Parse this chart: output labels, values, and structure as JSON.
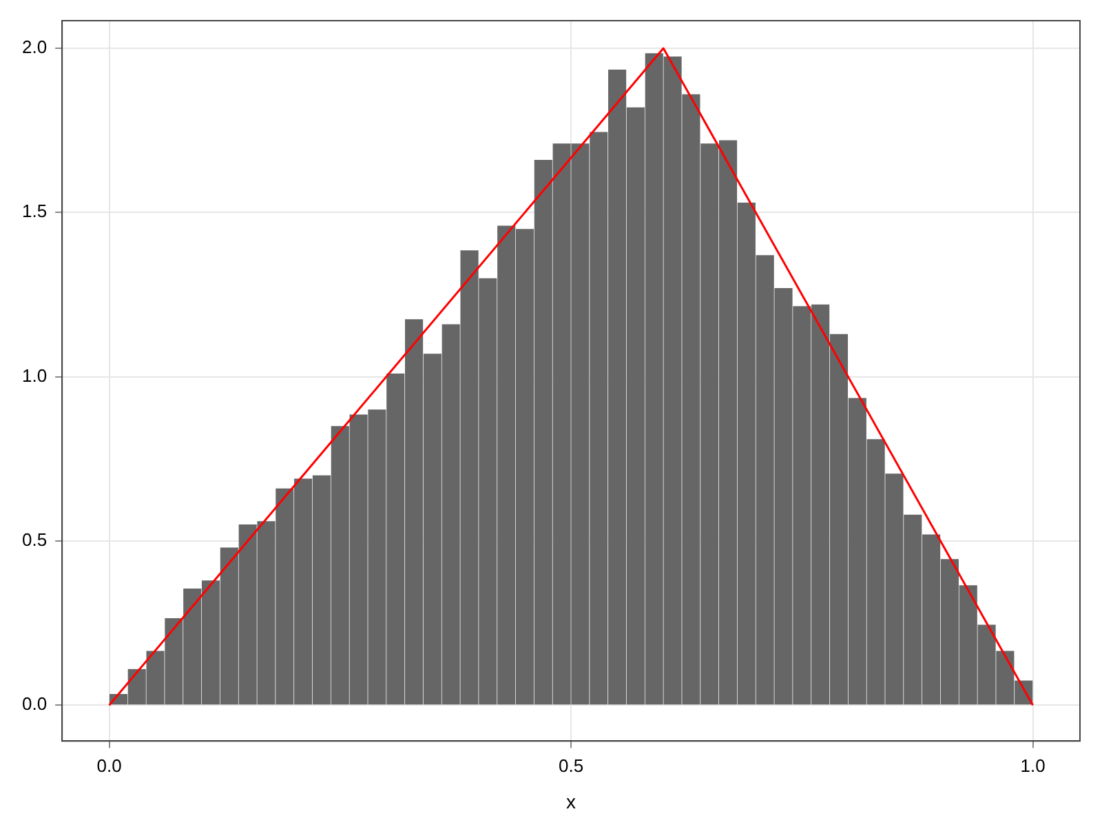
{
  "chart_data": {
    "type": "histogram",
    "xlabel": "x",
    "xlim": [
      -0.051,
      1.051
    ],
    "ylim": [
      -0.109,
      2.084
    ],
    "xticks": [
      {
        "value": 0,
        "label": "0.0"
      },
      {
        "value": 0.5,
        "label": "0.5"
      },
      {
        "value": 1,
        "label": "1.0"
      }
    ],
    "yticks": [
      {
        "value": 0,
        "label": "0.0"
      },
      {
        "value": 0.5,
        "label": "0.5"
      },
      {
        "value": 1,
        "label": "1.0"
      },
      {
        "value": 1.5,
        "label": "1.5"
      },
      {
        "value": 2,
        "label": "2.0"
      }
    ],
    "grid": true,
    "legend": false,
    "series": [
      {
        "type": "histogram",
        "color": "#666666",
        "bins": [
          0,
          0.02,
          0.04,
          0.06,
          0.08,
          0.1,
          0.12,
          0.14,
          0.16,
          0.18,
          0.2,
          0.22,
          0.24,
          0.26,
          0.28,
          0.3,
          0.32,
          0.34,
          0.36,
          0.38,
          0.4,
          0.42,
          0.44,
          0.46,
          0.48,
          0.5,
          0.52,
          0.54,
          0.56,
          0.58,
          0.6,
          0.62,
          0.64,
          0.66,
          0.68,
          0.7,
          0.72,
          0.74,
          0.76,
          0.78,
          0.8,
          0.82,
          0.84,
          0.86,
          0.88,
          0.9,
          0.92,
          0.94,
          0.96,
          0.98,
          1
        ],
        "values": [
          0.034,
          0.11,
          0.165,
          0.265,
          0.355,
          0.38,
          0.48,
          0.55,
          0.56,
          0.66,
          0.69,
          0.7,
          0.85,
          0.885,
          0.9,
          1.01,
          1.175,
          1.07,
          1.16,
          1.385,
          1.3,
          1.46,
          1.45,
          1.66,
          1.71,
          1.71,
          1.745,
          1.935,
          1.82,
          1.985,
          1.975,
          1.86,
          1.71,
          1.72,
          1.53,
          1.37,
          1.27,
          1.215,
          1.22,
          1.13,
          0.935,
          0.81,
          0.705,
          0.58,
          0.52,
          0.445,
          0.365,
          0.245,
          0.165,
          0.075
        ]
      },
      {
        "type": "line",
        "color": "#ff0000",
        "x": [
          0,
          0.6,
          1
        ],
        "values": [
          0,
          2,
          0
        ]
      }
    ]
  }
}
